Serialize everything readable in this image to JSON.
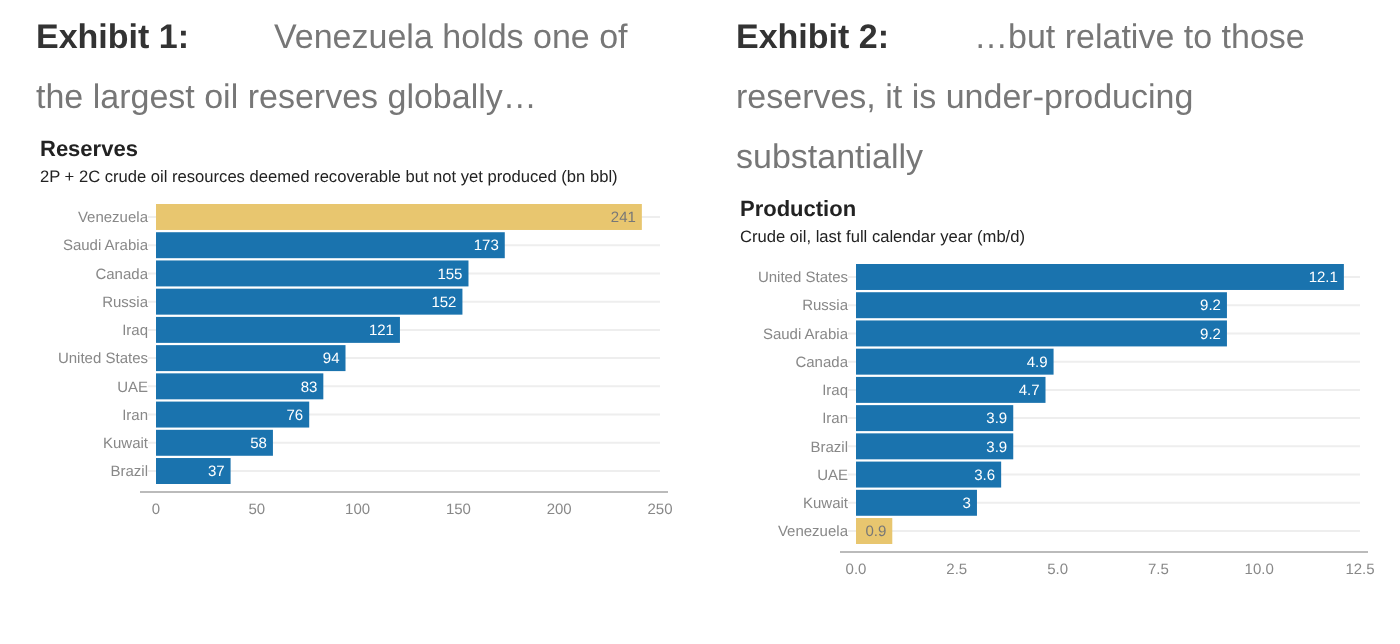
{
  "chart_data": [
    {
      "type": "bar",
      "orientation": "horizontal",
      "title": "Reserves",
      "subtitle": "2P + 2C crude oil resources deemed recoverable but not yet produced (bn bbl)",
      "annotations": [
        "Exhibit 1:",
        "Venezuela holds one of the largest oil reserves globally…"
      ],
      "categories": [
        "Venezuela",
        "Saudi Arabia",
        "Canada",
        "Russia",
        "Iraq",
        "United States",
        "UAE",
        "Iran",
        "Kuwait",
        "Brazil"
      ],
      "values": [
        241,
        173,
        155,
        152,
        121,
        94,
        83,
        76,
        58,
        37
      ],
      "colors": [
        "#e8c66f",
        "#1a73ae",
        "#1a73ae",
        "#1a73ae",
        "#1a73ae",
        "#1a73ae",
        "#1a73ae",
        "#1a73ae",
        "#1a73ae",
        "#1a73ae"
      ],
      "xlim": [
        0,
        250
      ],
      "xticks": [
        0,
        50,
        100,
        150,
        200,
        250
      ],
      "grid": "y",
      "data_labels": true
    },
    {
      "type": "bar",
      "orientation": "horizontal",
      "title": "Production",
      "subtitle": "Crude oil, last full calendar year (mb/d)",
      "annotations": [
        "Exhibit 2:",
        "…but relative to those reserves, it is under-producing substantially"
      ],
      "categories": [
        "United States",
        "Russia",
        "Saudi Arabia",
        "Canada",
        "Iraq",
        "Iran",
        "Brazil",
        "UAE",
        "Kuwait",
        "Venezuela"
      ],
      "values": [
        12.1,
        9.2,
        9.2,
        4.9,
        4.7,
        3.9,
        3.9,
        3.6,
        3,
        0.9
      ],
      "colors": [
        "#1a73ae",
        "#1a73ae",
        "#1a73ae",
        "#1a73ae",
        "#1a73ae",
        "#1a73ae",
        "#1a73ae",
        "#1a73ae",
        "#1a73ae",
        "#e8c66f"
      ],
      "xlim": [
        0,
        12.5
      ],
      "xticks": [
        {
          "value": 0,
          "label": "0.0"
        },
        {
          "value": 2.5,
          "label": "2.5"
        },
        {
          "value": 5,
          "label": "5.0"
        },
        {
          "value": 7.5,
          "label": "7.5"
        },
        {
          "value": 10,
          "label": "10.0"
        },
        {
          "value": 12.5,
          "label": "12.5"
        }
      ],
      "grid": "y",
      "data_labels": true
    }
  ]
}
